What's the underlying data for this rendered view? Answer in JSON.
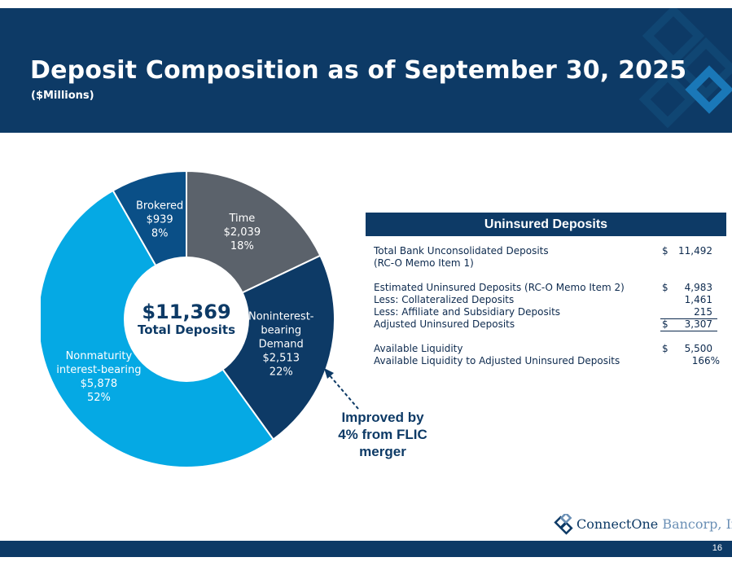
{
  "header": {
    "title": "Deposit Composition as of September 30, 2025",
    "subtitle": "($Millions)"
  },
  "colors": {
    "navy": "#0d3a66",
    "time": "#5b626b",
    "nonint": "#0d3a66",
    "nonmat": "#05a9e4",
    "brokered": "#0a4f87"
  },
  "chart_data": {
    "type": "pie",
    "donut": true,
    "center_value": "$11,369",
    "center_label": "Total Deposits",
    "slices": [
      {
        "name_lines": [
          "Time"
        ],
        "value_label": "$2,039",
        "pct_label": "18%",
        "value": 2039,
        "pct": 18,
        "color": "#5b626b"
      },
      {
        "name_lines": [
          "Noninterest-",
          "bearing",
          "Demand"
        ],
        "value_label": "$2,513",
        "pct_label": "22%",
        "value": 2513,
        "pct": 22,
        "color": "#0d3a66"
      },
      {
        "name_lines": [
          "Nonmaturity",
          "interest-bearing"
        ],
        "value_label": "$5,878",
        "pct_label": "52%",
        "value": 5878,
        "pct": 52,
        "color": "#05a9e4"
      },
      {
        "name_lines": [
          "Brokered"
        ],
        "value_label": "$939",
        "pct_label": "8%",
        "value": 939,
        "pct": 8,
        "color": "#0a4f87"
      }
    ]
  },
  "uninsured": {
    "title": "Uninsured Deposits",
    "rows": [
      {
        "label": "Total Bank Unconsolidated Deposits",
        "currency": "$",
        "value": "11,492"
      },
      {
        "label": "(RC-O Memo Item 1)",
        "currency": "",
        "value": ""
      },
      {
        "label": "Estimated Uninsured Deposits (RC-O Memo Item 2)",
        "currency": "$",
        "value": "4,983"
      },
      {
        "label": "Less: Collateralized Deposits",
        "currency": "",
        "value": "1,461"
      },
      {
        "label": "Less: Affiliate and Subsidiary Deposits",
        "currency": "",
        "value": "215"
      },
      {
        "label": "Adjusted Uninsured Deposits",
        "currency": "$",
        "value": "3,307"
      },
      {
        "label": "Available Liquidity",
        "currency": "$",
        "value": "5,500"
      },
      {
        "label": "Available Liquidity to Adjusted Uninsured Deposits",
        "currency": "",
        "value": "166%"
      }
    ]
  },
  "annotation": {
    "lines": [
      "Improved by",
      "4% from FLIC",
      "merger"
    ]
  },
  "logo": {
    "part1": "ConnectOne",
    "part2": "Bancorp, Inc."
  },
  "footer": {
    "page_number": "16"
  }
}
